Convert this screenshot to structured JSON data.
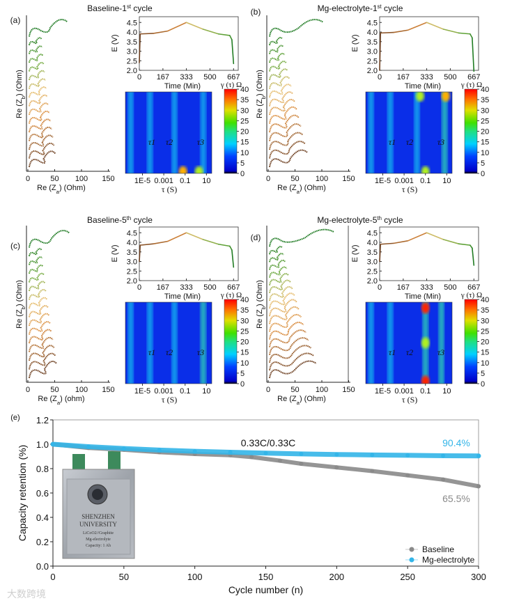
{
  "panels": [
    {
      "label": "(a)",
      "title": [
        [
          "Baseline-1",
          ""
        ],
        [
          "st",
          "sup"
        ],
        [
          " cycle",
          ""
        ]
      ],
      "nyquist": {
        "ylabel": [
          [
            "Re (Z",
            ""
          ],
          [
            "b",
            "sub"
          ],
          [
            ") (Ohm)",
            ""
          ]
        ],
        "xlabel": [
          [
            "Re (Z",
            ""
          ],
          [
            "a",
            "sub"
          ],
          [
            ") (Ohm)",
            ""
          ]
        ],
        "xticks": [
          "0",
          "50",
          "100",
          "150"
        ],
        "spectra_count": 16,
        "max_arc_ohm": 70
      },
      "voltage": {
        "ylabel": "E (V)",
        "yticks": [
          "2.0",
          "2.5",
          "3.0",
          "3.5",
          "4.0",
          "4.5"
        ],
        "xticks": [
          "0",
          "167",
          "333",
          "500",
          "667"
        ],
        "xlabel": "Time (Min)",
        "curve": [
          [
            0,
            2.4
          ],
          [
            6,
            3.9
          ],
          [
            100,
            3.93
          ],
          [
            200,
            4.05
          ],
          [
            333,
            4.5
          ],
          [
            450,
            4.15
          ],
          [
            560,
            3.9
          ],
          [
            640,
            3.82
          ],
          [
            655,
            3.6
          ],
          [
            667,
            2.35
          ]
        ]
      },
      "drt": {
        "colorbar_label": "γ (τ) Ω",
        "colorbar_ticks": [
          "0",
          "5",
          "10",
          "15",
          "20",
          "25",
          "30",
          "35",
          "40"
        ],
        "tau_ticks": [
          "1E-5",
          "0.001",
          "0.1",
          "10"
        ],
        "xlabel": "τ (S)",
        "peak_labels": [
          "τ1",
          "τ2",
          "τ3"
        ],
        "bands": [
          [
            -6.1,
            8
          ],
          [
            -4.3,
            9
          ],
          [
            -2.0,
            8
          ],
          [
            0.7,
            11
          ]
        ],
        "hotspots": [
          [
            -1.2,
            0.02,
            30
          ],
          [
            0.3,
            0.02,
            25
          ]
        ]
      }
    },
    {
      "label": "(b)",
      "title": [
        [
          "Mg-electrolyte-1",
          ""
        ],
        [
          "st",
          "sup"
        ],
        [
          " cycle",
          ""
        ]
      ],
      "nyquist": {
        "ylabel": [
          [
            "Re (Z",
            ""
          ],
          [
            "b",
            "sub"
          ],
          [
            ") (Ohm)",
            ""
          ]
        ],
        "xlabel": [
          [
            "Re (Z",
            ""
          ],
          [
            "a",
            "sub"
          ],
          [
            ") (Ohm)",
            ""
          ]
        ],
        "xticks": [
          "0",
          "50",
          "100",
          "150"
        ],
        "spectra_count": 16,
        "max_arc_ohm": 110
      },
      "voltage": {
        "ylabel": "E (V)",
        "yticks": [
          "2.0",
          "2.5",
          "3.0",
          "3.5",
          "4.0",
          "4.5"
        ],
        "xticks": [
          "0",
          "167",
          "333",
          "500",
          "667"
        ],
        "xlabel": "Time (Min)",
        "curve": [
          [
            0,
            2.0
          ],
          [
            6,
            3.95
          ],
          [
            100,
            3.98
          ],
          [
            200,
            4.1
          ],
          [
            333,
            4.5
          ],
          [
            450,
            4.15
          ],
          [
            560,
            3.95
          ],
          [
            640,
            3.9
          ],
          [
            655,
            3.7
          ],
          [
            667,
            1.95
          ]
        ]
      },
      "drt": {
        "colorbar_label": "γ (τ) Ω",
        "colorbar_ticks": [
          "0",
          "5",
          "10",
          "15",
          "20",
          "25",
          "30",
          "35",
          "40"
        ],
        "tau_ticks": [
          "1E-5",
          "0.001",
          "0.1",
          "10"
        ],
        "xlabel": "τ (S)",
        "peak_labels": [
          "τ1",
          "τ2",
          "τ3"
        ],
        "bands": [
          [
            -6.1,
            8
          ],
          [
            -4.3,
            10
          ],
          [
            -1.8,
            10
          ],
          [
            0.8,
            14
          ]
        ],
        "hotspots": [
          [
            -1.0,
            0.02,
            28
          ],
          [
            0.9,
            0.95,
            32
          ],
          [
            -1.5,
            0.95,
            22
          ]
        ]
      }
    },
    {
      "label": "(c)",
      "title": [
        [
          "Baseline-5",
          ""
        ],
        [
          "th",
          "sup"
        ],
        [
          " cycle",
          ""
        ]
      ],
      "nyquist": {
        "ylabel": [
          [
            "Re (Z",
            ""
          ],
          [
            "b",
            "sub"
          ],
          [
            ") (Ohm)",
            ""
          ]
        ],
        "xlabel": [
          [
            "Re (Z",
            ""
          ],
          [
            "a",
            "sub"
          ],
          [
            ") (ohm)",
            ""
          ]
        ],
        "xticks": [
          "0",
          "50",
          "100",
          "150"
        ],
        "spectra_count": 16,
        "max_arc_ohm": 75
      },
      "voltage": {
        "ylabel": "E (V)",
        "yticks": [
          "2.0",
          "2.5",
          "3.0",
          "3.5",
          "4.0",
          "4.5"
        ],
        "xticks": [
          "0",
          "167",
          "333",
          "500",
          "667"
        ],
        "xlabel": "Time (Min)",
        "curve": [
          [
            0,
            3.0
          ],
          [
            6,
            3.85
          ],
          [
            100,
            3.92
          ],
          [
            200,
            4.05
          ],
          [
            333,
            4.5
          ],
          [
            450,
            4.15
          ],
          [
            560,
            3.9
          ],
          [
            640,
            3.8
          ],
          [
            655,
            3.6
          ],
          [
            667,
            2.7
          ]
        ]
      },
      "drt": {
        "colorbar_label": "γ (τ) Ω",
        "colorbar_ticks": [
          "0",
          "5",
          "10",
          "15",
          "20",
          "25",
          "30",
          "35",
          "40"
        ],
        "tau_ticks": [
          "1E-5",
          "0.001",
          "0.1",
          "10"
        ],
        "xlabel": "τ (S)",
        "peak_labels": [
          "τ1",
          "τ2",
          "τ3"
        ],
        "bands": [
          [
            -6.1,
            7
          ],
          [
            -4.3,
            8
          ],
          [
            -2.0,
            8
          ],
          [
            0.7,
            12
          ]
        ],
        "hotspots": []
      }
    },
    {
      "label": "(d)",
      "title": [
        [
          "Mg-electrolyte-5",
          ""
        ],
        [
          "th",
          "sup"
        ],
        [
          " cycle",
          ""
        ]
      ],
      "nyquist": {
        "ylabel": [
          [
            "Re (Z",
            ""
          ],
          [
            "b",
            "sub"
          ],
          [
            ") (Ohm)",
            ""
          ]
        ],
        "xlabel": [
          [
            "Re (Z",
            ""
          ],
          [
            "a",
            "sub"
          ],
          [
            ") (Ohm)",
            ""
          ]
        ],
        "xticks": [
          "0",
          "50",
          "100",
          "150"
        ],
        "spectra_count": 18,
        "max_arc_ohm": 140
      },
      "voltage": {
        "ylabel": "E (V)",
        "yticks": [
          "2.0",
          "2.5",
          "3.0",
          "3.5",
          "4.0",
          "4.5"
        ],
        "xticks": [
          "0",
          "167",
          "333",
          "500",
          "667"
        ],
        "xlabel": "Time (Min)",
        "curve": [
          [
            0,
            3.0
          ],
          [
            6,
            3.9
          ],
          [
            100,
            3.95
          ],
          [
            200,
            4.08
          ],
          [
            333,
            4.5
          ],
          [
            450,
            4.15
          ],
          [
            560,
            3.92
          ],
          [
            640,
            3.85
          ],
          [
            655,
            3.7
          ],
          [
            667,
            2.8
          ]
        ]
      },
      "drt": {
        "colorbar_label": "γ (τ) Ω",
        "colorbar_ticks": [
          "0",
          "5",
          "10",
          "15",
          "20",
          "25",
          "30",
          "35",
          "40"
        ],
        "tau_ticks": [
          "1E-5",
          "0.001",
          "0.1",
          "10"
        ],
        "xlabel": "τ (S)",
        "peak_labels": [
          "τ1",
          "τ2",
          "τ3"
        ],
        "bands": [
          [
            -6.1,
            7
          ],
          [
            -4.3,
            9
          ],
          [
            -1.0,
            16
          ],
          [
            0.5,
            12
          ]
        ],
        "hotspots": [
          [
            -1.0,
            0.03,
            40
          ],
          [
            -1.0,
            0.93,
            40
          ],
          [
            -1.0,
            0.5,
            20
          ]
        ]
      }
    }
  ],
  "chart_data": {
    "type": "scatter",
    "panel_label": "(e)",
    "xlabel": "Cycle number (n)",
    "ylabel": "Capacity retention (%)",
    "xlim": [
      0,
      300
    ],
    "ylim": [
      0,
      1.2
    ],
    "xticks": [
      "0",
      "50",
      "100",
      "150",
      "200",
      "250",
      "300"
    ],
    "yticks": [
      "0.0",
      "0.2",
      "0.4",
      "0.6",
      "0.8",
      "1.0",
      "1.2"
    ],
    "annotation": "0.33C/0.33C",
    "series": [
      {
        "name": "Baseline",
        "color": "#8a8a8a",
        "end_label": "65.5%",
        "x": [
          0,
          25,
          50,
          75,
          100,
          125,
          140,
          160,
          175,
          200,
          225,
          250,
          275,
          300
        ],
        "y": [
          1.0,
          0.97,
          0.955,
          0.935,
          0.92,
          0.91,
          0.895,
          0.865,
          0.84,
          0.81,
          0.78,
          0.745,
          0.71,
          0.655
        ]
      },
      {
        "name": "Mg-electrolyte",
        "color": "#33b5e8",
        "end_label": "90.4%",
        "x": [
          0,
          25,
          50,
          75,
          100,
          125,
          150,
          175,
          200,
          225,
          250,
          275,
          300
        ],
        "y": [
          1.0,
          0.98,
          0.965,
          0.952,
          0.942,
          0.934,
          0.927,
          0.921,
          0.916,
          0.912,
          0.909,
          0.906,
          0.904
        ]
      }
    ],
    "legend_position": "bottom-right"
  },
  "inset_photo": {
    "lines": [
      "SHENZHEN",
      "UNIVERSITY",
      "LiCoO2//Graphite",
      "Mg-electrolyte",
      "Capacity: 1 Ah"
    ]
  },
  "watermark": "大数跨境"
}
